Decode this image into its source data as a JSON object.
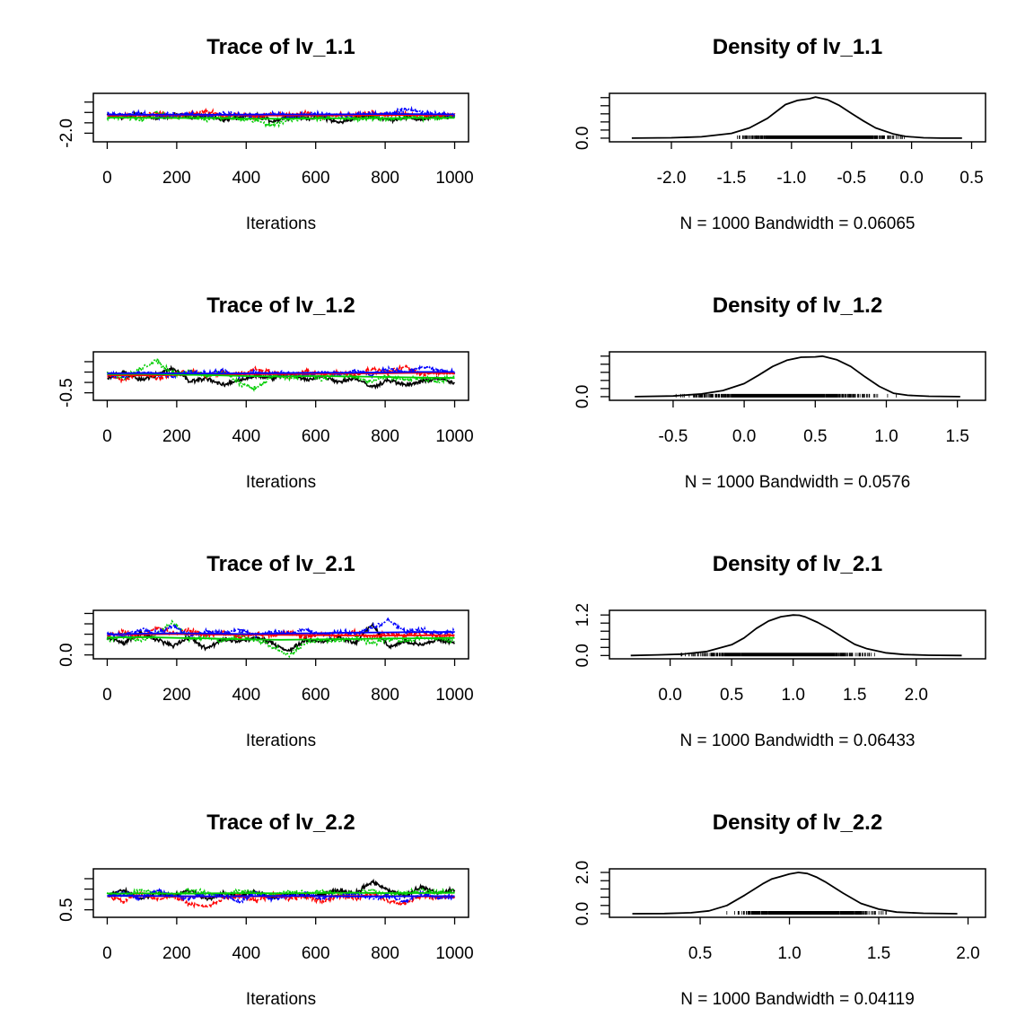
{
  "figure": {
    "background": "#ffffff"
  },
  "chart_data": [
    {
      "type": "line",
      "title": "Trace of lv_1.1",
      "xlabel": "Iterations",
      "xticks": [
        "0",
        "200",
        "400",
        "600",
        "800",
        "1000"
      ],
      "yticks_labeled": [
        "-2.0"
      ],
      "xlim": [
        0,
        1000
      ],
      "ylim": [
        -2.45,
        0.55
      ],
      "series": [
        {
          "color": "#000000",
          "values": [
            -0.8,
            -0.95,
            -0.7,
            -1.05,
            -0.75,
            -0.9,
            -0.85,
            -1.1,
            -0.95,
            -0.8,
            -1.2,
            -0.85,
            -1.0,
            -0.9,
            -1.3,
            -0.95,
            -0.85,
            -1.1,
            -0.95,
            -1.05,
            -0.9,
            -0.85
          ]
        },
        {
          "color": "#ff0000",
          "values": [
            -0.85,
            -0.75,
            -0.95,
            -0.6,
            -0.9,
            -0.7,
            -0.5,
            -0.85,
            -0.75,
            -0.95,
            -0.7,
            -0.8,
            -0.65,
            -0.9,
            -0.75,
            -0.85,
            -0.6,
            -0.8,
            -0.7,
            -0.9,
            -0.75,
            -0.8
          ]
        },
        {
          "color": "#00cd00",
          "values": [
            -1.0,
            -0.85,
            -1.15,
            -0.6,
            -0.95,
            -0.85,
            -1.1,
            -0.9,
            -1.05,
            -1.2,
            -1.45,
            -1.1,
            -0.95,
            -1.0,
            -0.9,
            -1.05,
            -0.95,
            -1.1,
            -0.9,
            -0.95,
            -1.0,
            -0.85
          ]
        },
        {
          "color": "#0000ff",
          "values": [
            -0.7,
            -0.8,
            -0.65,
            -0.9,
            -0.75,
            -0.7,
            -0.85,
            -0.65,
            -0.75,
            -0.8,
            -0.7,
            -0.85,
            -0.75,
            -0.7,
            -0.8,
            -0.75,
            -0.65,
            -0.75,
            -0.4,
            -0.6,
            -0.7,
            -0.75
          ]
        }
      ],
      "smooth": [
        {
          "color": "#ff0000",
          "values": [
            -0.82,
            -0.8,
            -0.8,
            -0.78,
            -0.8,
            -0.81,
            -0.8,
            -0.79,
            -0.78,
            -0.78,
            -0.77
          ]
        },
        {
          "color": "#00cd00",
          "values": [
            -0.95,
            -0.96,
            -0.98,
            -0.97,
            -1.02,
            -1.03,
            -1.0,
            -0.99,
            -0.99,
            -0.98,
            -0.97
          ]
        },
        {
          "color": "#0000ff",
          "values": [
            -0.75,
            -0.76,
            -0.75,
            -0.76,
            -0.75,
            -0.74,
            -0.74,
            -0.73,
            -0.71,
            -0.72,
            -0.74
          ]
        }
      ]
    },
    {
      "type": "line",
      "title": "Density of lv_1.1",
      "xlabel": "N = 1000   Bandwidth = 0.06065",
      "xticks": [
        "-2.0",
        "-1.5",
        "-1.0",
        "-0.5",
        "0.0",
        "0.5"
      ],
      "yticks_labeled": [
        "0.0"
      ],
      "xlim": [
        -2.4,
        0.5
      ],
      "ylim": [
        -0.05,
        1.25
      ],
      "x": [
        -2.33,
        -2.0,
        -1.75,
        -1.5,
        -1.35,
        -1.2,
        -1.05,
        -0.95,
        -0.85,
        -0.8,
        -0.7,
        -0.6,
        -0.5,
        -0.4,
        -0.3,
        -0.15,
        -0.05,
        0.1,
        0.25,
        0.42
      ],
      "y": [
        0.0,
        0.01,
        0.04,
        0.14,
        0.3,
        0.58,
        0.98,
        1.1,
        1.15,
        1.2,
        1.12,
        0.95,
        0.72,
        0.5,
        0.3,
        0.12,
        0.05,
        0.01,
        0.0,
        0.0
      ],
      "rug": {
        "min": -1.6,
        "max": 0.05,
        "count": 1000
      }
    },
    {
      "type": "line",
      "title": "Trace of lv_1.2",
      "xlabel": "Iterations",
      "xticks": [
        "0",
        "200",
        "400",
        "600",
        "800",
        "1000"
      ],
      "yticks_labeled": [
        "-0.5"
      ],
      "xlim": [
        0,
        1000
      ],
      "ylim": [
        -0.8,
        1.6
      ],
      "series": [
        {
          "color": "#000000",
          "values": [
            0.3,
            0.6,
            0.2,
            0.5,
            0.8,
            0.1,
            0.3,
            -0.1,
            0.2,
            0.4,
            0.3,
            0.5,
            0.2,
            0.4,
            0.1,
            0.3,
            -0.2,
            0.2,
            -0.1,
            0.1,
            0.3,
            0.0
          ]
        },
        {
          "color": "#ff0000",
          "values": [
            0.4,
            0.2,
            0.6,
            0.3,
            0.5,
            0.7,
            0.4,
            0.6,
            0.5,
            0.8,
            0.6,
            0.4,
            0.7,
            0.5,
            0.6,
            0.4,
            0.8,
            0.6,
            0.9,
            0.5,
            0.6,
            0.5
          ]
        },
        {
          "color": "#00cd00",
          "values": [
            0.6,
            0.3,
            0.8,
            1.2,
            0.5,
            0.7,
            0.4,
            0.6,
            0.0,
            -0.3,
            0.4,
            0.3,
            0.5,
            0.2,
            0.6,
            0.3,
            0.1,
            0.4,
            0.2,
            0.3,
            0.1,
            0.4
          ]
        },
        {
          "color": "#0000ff",
          "values": [
            0.5,
            0.4,
            0.6,
            0.5,
            0.4,
            0.6,
            0.5,
            0.7,
            0.4,
            0.6,
            0.5,
            0.6,
            0.4,
            0.6,
            0.5,
            0.7,
            0.5,
            0.8,
            0.6,
            0.9,
            0.7,
            0.6
          ]
        }
      ],
      "smooth": [
        {
          "color": "#ff0000",
          "values": [
            0.45,
            0.44,
            0.46,
            0.48,
            0.5,
            0.5,
            0.52,
            0.54,
            0.55,
            0.58,
            0.55
          ]
        },
        {
          "color": "#00cd00",
          "values": [
            0.5,
            0.52,
            0.48,
            0.45,
            0.4,
            0.38,
            0.4,
            0.38,
            0.35,
            0.32,
            0.3
          ]
        },
        {
          "color": "#0000ff",
          "values": [
            0.55,
            0.56,
            0.55,
            0.54,
            0.55,
            0.56,
            0.58,
            0.58,
            0.6,
            0.62,
            0.62
          ]
        }
      ]
    },
    {
      "type": "line",
      "title": "Density of lv_1.2",
      "xlabel": "N = 1000   Bandwidth = 0.0576",
      "xticks": [
        "-0.5",
        "0.0",
        "0.5",
        "1.0",
        "1.5"
      ],
      "yticks_labeled": [
        "0.0"
      ],
      "xlim": [
        -0.85,
        1.6
      ],
      "ylim": [
        -0.05,
        1.25
      ],
      "x": [
        -0.77,
        -0.5,
        -0.3,
        -0.15,
        0.0,
        0.1,
        0.2,
        0.3,
        0.4,
        0.5,
        0.55,
        0.65,
        0.75,
        0.85,
        0.95,
        1.05,
        1.15,
        1.3,
        1.52
      ],
      "y": [
        0.0,
        0.02,
        0.08,
        0.18,
        0.38,
        0.62,
        0.88,
        1.06,
        1.15,
        1.16,
        1.18,
        1.08,
        0.88,
        0.58,
        0.3,
        0.1,
        0.04,
        0.01,
        0.0
      ],
      "rug": {
        "min": -0.55,
        "max": 1.1,
        "count": 1000
      }
    },
    {
      "type": "line",
      "title": "Trace of lv_2.1",
      "xlabel": "Iterations",
      "xticks": [
        "0",
        "200",
        "400",
        "600",
        "800",
        "1000"
      ],
      "yticks_labeled": [
        "0.0"
      ],
      "xlim": [
        0,
        1000
      ],
      "ylim": [
        -0.1,
        2.2
      ],
      "series": [
        {
          "color": "#000000",
          "values": [
            0.9,
            0.6,
            1.1,
            0.8,
            0.5,
            0.9,
            0.3,
            0.8,
            0.7,
            0.9,
            0.6,
            0.2,
            0.8,
            0.7,
            0.9,
            0.6,
            1.6,
            0.4,
            0.7,
            0.5,
            0.8,
            0.6
          ]
        },
        {
          "color": "#ff0000",
          "values": [
            1.0,
            1.2,
            0.9,
            1.4,
            1.1,
            1.3,
            1.0,
            1.2,
            0.9,
            1.1,
            1.0,
            1.2,
            0.9,
            1.1,
            1.0,
            1.2,
            0.9,
            1.1,
            1.0,
            1.2,
            0.9,
            1.0
          ]
        },
        {
          "color": "#00cd00",
          "values": [
            0.8,
            1.0,
            0.7,
            1.1,
            1.7,
            0.8,
            0.9,
            0.7,
            1.0,
            0.8,
            0.4,
            0.0,
            0.6,
            0.8,
            0.7,
            0.9,
            0.6,
            0.8,
            0.7,
            0.9,
            0.8,
            0.7
          ]
        },
        {
          "color": "#0000ff",
          "values": [
            1.1,
            1.0,
            1.3,
            1.1,
            1.5,
            1.0,
            1.2,
            1.1,
            1.3,
            1.0,
            1.2,
            1.1,
            1.3,
            1.0,
            1.2,
            1.1,
            1.4,
            1.8,
            1.2,
            1.3,
            1.1,
            1.2
          ]
        }
      ],
      "smooth": [
        {
          "color": "#ff0000",
          "values": [
            1.05,
            1.06,
            1.08,
            1.05,
            1.04,
            1.03,
            1.02,
            1.0,
            1.0,
            1.01,
            1.02
          ]
        },
        {
          "color": "#00cd00",
          "values": [
            0.9,
            0.92,
            0.88,
            0.85,
            0.8,
            0.78,
            0.8,
            0.82,
            0.85,
            0.86,
            0.88
          ]
        },
        {
          "color": "#0000ff",
          "values": [
            1.05,
            1.1,
            1.12,
            1.1,
            1.08,
            1.1,
            1.12,
            1.15,
            1.16,
            1.18,
            1.18
          ]
        }
      ]
    },
    {
      "type": "line",
      "title": "Density of lv_2.1",
      "xlabel": "N = 1000   Bandwidth = 0.06433",
      "xticks": [
        "0.0",
        "0.5",
        "1.0",
        "1.5",
        "2.0"
      ],
      "yticks_labeled": [
        "0.0",
        "1.2"
      ],
      "xlim": [
        -0.38,
        2.45
      ],
      "ylim": [
        -0.04,
        1.28
      ],
      "x": [
        -0.32,
        -0.1,
        0.1,
        0.3,
        0.5,
        0.6,
        0.7,
        0.8,
        0.9,
        1.0,
        1.05,
        1.1,
        1.2,
        1.3,
        1.4,
        1.5,
        1.6,
        1.75,
        1.9,
        2.1,
        2.37
      ],
      "y": [
        0.0,
        0.02,
        0.04,
        0.12,
        0.32,
        0.52,
        0.8,
        1.02,
        1.15,
        1.2,
        1.19,
        1.14,
        0.98,
        0.78,
        0.55,
        0.33,
        0.2,
        0.08,
        0.03,
        0.01,
        0.0
      ],
      "rug": {
        "min": -0.05,
        "max": 1.85,
        "count": 1000
      }
    },
    {
      "type": "line",
      "title": "Trace of lv_2.2",
      "xlabel": "Iterations",
      "xticks": [
        "0",
        "200",
        "400",
        "600",
        "800",
        "1000"
      ],
      "yticks_labeled": [
        "0.5"
      ],
      "xlim": [
        0,
        1000
      ],
      "ylim": [
        0.3,
        1.9
      ],
      "series": [
        {
          "color": "#000000",
          "values": [
            1.0,
            1.2,
            0.9,
            1.1,
            1.0,
            1.2,
            0.9,
            1.1,
            1.0,
            1.15,
            0.95,
            1.1,
            1.0,
            1.05,
            1.2,
            1.1,
            1.5,
            1.2,
            1.0,
            1.3,
            1.1,
            1.2
          ]
        },
        {
          "color": "#ff0000",
          "values": [
            1.0,
            0.8,
            1.1,
            0.9,
            1.0,
            0.7,
            0.6,
            0.9,
            1.0,
            0.8,
            1.1,
            0.9,
            1.0,
            0.8,
            1.0,
            0.9,
            1.1,
            0.8,
            0.7,
            1.0,
            0.9,
            1.0
          ]
        },
        {
          "color": "#00cd00",
          "values": [
            1.1,
            1.0,
            1.2,
            1.1,
            1.0,
            1.2,
            1.1,
            1.0,
            1.2,
            1.1,
            1.0,
            1.2,
            1.1,
            1.2,
            1.0,
            1.1,
            1.2,
            1.0,
            1.1,
            1.2,
            1.1,
            1.2
          ]
        },
        {
          "color": "#0000ff",
          "values": [
            1.0,
            1.1,
            0.9,
            1.2,
            1.0,
            0.9,
            1.1,
            1.0,
            0.8,
            1.1,
            0.9,
            1.0,
            1.1,
            0.9,
            1.0,
            1.1,
            0.9,
            1.0,
            0.8,
            1.1,
            0.9,
            1.0
          ]
        }
      ],
      "smooth": [
        {
          "color": "#ff0000",
          "values": [
            1.0,
            0.99,
            0.98,
            0.97,
            0.98,
            0.98,
            0.99,
            1.0,
            0.99,
            0.98,
            0.98
          ]
        },
        {
          "color": "#00cd00",
          "values": [
            1.08,
            1.09,
            1.08,
            1.09,
            1.1,
            1.09,
            1.1,
            1.11,
            1.1,
            1.1,
            1.11
          ]
        },
        {
          "color": "#0000ff",
          "values": [
            1.0,
            1.0,
            0.99,
            0.98,
            0.99,
            1.0,
            0.99,
            0.98,
            0.98,
            0.99,
            0.99
          ]
        }
      ]
    },
    {
      "type": "line",
      "title": "Density of lv_2.2",
      "xlabel": "N = 1000   Bandwidth = 0.04119",
      "xticks": [
        "0.5",
        "1.0",
        "1.5",
        "2.0"
      ],
      "yticks_labeled": [
        "0.0",
        "2.0"
      ],
      "xlim": [
        0.07,
        2.02
      ],
      "ylim": [
        -0.08,
        2.08
      ],
      "x": [
        0.12,
        0.3,
        0.45,
        0.55,
        0.65,
        0.75,
        0.85,
        0.9,
        0.95,
        1.0,
        1.05,
        1.1,
        1.15,
        1.2,
        1.3,
        1.4,
        1.5,
        1.6,
        1.75,
        1.94
      ],
      "y": [
        0.0,
        0.01,
        0.05,
        0.14,
        0.4,
        0.9,
        1.45,
        1.68,
        1.8,
        1.92,
        2.0,
        1.95,
        1.78,
        1.55,
        1.0,
        0.5,
        0.22,
        0.08,
        0.02,
        0.0
      ],
      "rug": {
        "min": 0.6,
        "max": 1.6,
        "count": 1000
      }
    }
  ]
}
